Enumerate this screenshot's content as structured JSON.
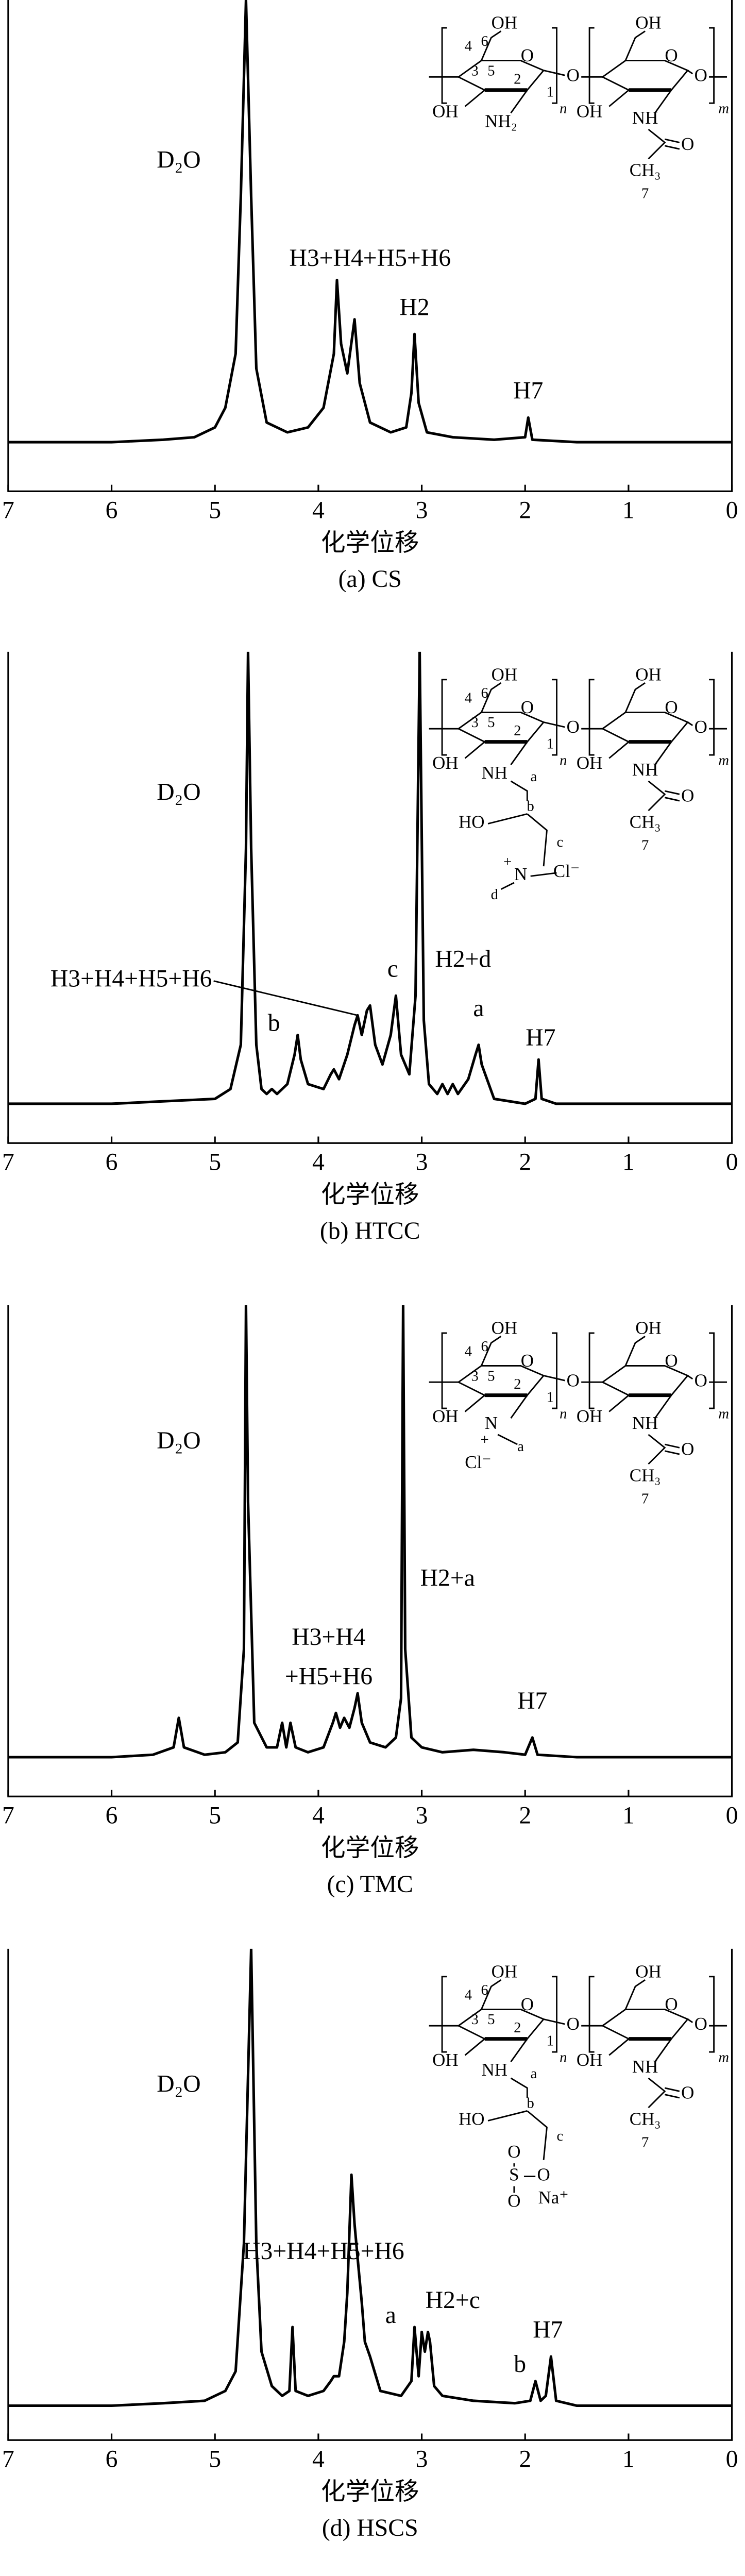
{
  "chart_data": [
    {
      "type": "line",
      "caption": "(a) CS",
      "x_label": "化学位移",
      "color": "#000000",
      "xlim": [
        7,
        0
      ],
      "ylim": [
        0,
        100
      ],
      "xticks": [
        7,
        6,
        5,
        4,
        3,
        2,
        1,
        0
      ],
      "x": [
        7,
        6,
        5.5,
        5.2,
        5.0,
        4.9,
        4.8,
        4.75,
        4.7,
        4.65,
        4.6,
        4.5,
        4.3,
        4.1,
        3.95,
        3.85,
        3.82,
        3.78,
        3.72,
        3.65,
        3.6,
        3.5,
        3.3,
        3.15,
        3.1,
        3.07,
        3.03,
        2.95,
        2.7,
        2.3,
        2.0,
        1.97,
        1.93,
        1.5,
        1.0,
        0.5,
        0
      ],
      "values": [
        10,
        10,
        10.5,
        11,
        13,
        17,
        28,
        60,
        100,
        60,
        25,
        14,
        12,
        13,
        17,
        28,
        43,
        30,
        24,
        35,
        22,
        14,
        12,
        13,
        20,
        32,
        18,
        12,
        11,
        10.5,
        11,
        15,
        10.5,
        10,
        10,
        10,
        10
      ],
      "annotations": [
        {
          "text": "D₂O",
          "x": 5.35,
          "y": 67
        },
        {
          "text": "H3+H4+H5+H6",
          "x": 3.5,
          "y": 47
        },
        {
          "text": "H2",
          "x": 3.07,
          "y": 37
        },
        {
          "text": "H7",
          "x": 1.97,
          "y": 20
        }
      ],
      "structure": [
        "OH",
        "O",
        "4",
        "6",
        "3",
        "5",
        "2",
        "1",
        "OH",
        "NH₂",
        "O",
        "n",
        "OH",
        "O",
        "OH",
        "NH",
        "O",
        "CH₃",
        "7",
        "O",
        "m"
      ]
    },
    {
      "type": "line",
      "caption": "(b) HTCC",
      "x_label": "化学位移",
      "color": "#000000",
      "xlim": [
        7,
        0
      ],
      "ylim": [
        0,
        100
      ],
      "xticks": [
        7,
        6,
        5,
        4,
        3,
        2,
        1,
        0
      ],
      "x": [
        7,
        6,
        5.5,
        5.0,
        4.85,
        4.75,
        4.7,
        4.68,
        4.65,
        4.6,
        4.55,
        4.5,
        4.45,
        4.4,
        4.3,
        4.23,
        4.2,
        4.17,
        4.1,
        3.95,
        3.88,
        3.85,
        3.8,
        3.72,
        3.65,
        3.62,
        3.58,
        3.53,
        3.5,
        3.45,
        3.38,
        3.3,
        3.25,
        3.2,
        3.12,
        3.06,
        3.02,
        2.98,
        2.93,
        2.85,
        2.8,
        2.75,
        2.7,
        2.65,
        2.55,
        2.48,
        2.45,
        2.42,
        2.3,
        2.0,
        1.9,
        1.87,
        1.84,
        1.7,
        1,
        0
      ],
      "values": [
        8,
        8,
        8.5,
        9,
        11,
        20,
        60,
        100,
        60,
        20,
        11,
        10,
        11,
        10,
        12,
        18,
        22,
        17,
        12,
        11,
        14,
        15,
        13,
        18,
        24,
        26,
        22,
        27,
        28,
        20,
        16,
        22,
        30,
        18,
        14,
        30,
        100,
        25,
        12,
        10,
        12,
        10,
        12,
        10,
        13,
        18,
        20,
        16,
        9,
        8,
        9,
        17,
        9,
        8,
        8,
        8
      ],
      "annotations": [
        {
          "text": "D₂O",
          "x": 5.35,
          "y": 71
        },
        {
          "text": "H3+H4+H5+H6",
          "x": 5.81,
          "y": 33,
          "target": [
            3.62,
            26
          ]
        },
        {
          "text": "b",
          "x": 4.43,
          "y": 24
        },
        {
          "text": "c",
          "x": 3.28,
          "y": 35
        },
        {
          "text": "H2+d",
          "x": 2.6,
          "y": 37
        },
        {
          "text": "a",
          "x": 2.45,
          "y": 27
        },
        {
          "text": "H7",
          "x": 1.85,
          "y": 21
        }
      ],
      "structure": [
        "OH",
        "O",
        "4",
        "6",
        "3",
        "5",
        "2",
        "1",
        "OH",
        "NH",
        "a",
        "b",
        "HO",
        "c",
        "+",
        "N",
        "Cl⁻",
        "d",
        "O",
        "n",
        "OH",
        "O",
        "OH",
        "NH",
        "O",
        "CH₃",
        "7",
        "O",
        "m"
      ]
    },
    {
      "type": "line",
      "caption": "(c) TMC",
      "x_label": "化学位移",
      "color": "#000000",
      "xlim": [
        7,
        0
      ],
      "ylim": [
        0,
        100
      ],
      "xticks": [
        7,
        6,
        5,
        4,
        3,
        2,
        1,
        0
      ],
      "x": [
        7,
        6,
        5.6,
        5.4,
        5.35,
        5.3,
        5.1,
        4.9,
        4.78,
        4.72,
        4.7,
        4.68,
        4.62,
        4.5,
        4.4,
        4.35,
        4.31,
        4.27,
        4.22,
        4.1,
        3.95,
        3.86,
        3.83,
        3.79,
        3.75,
        3.7,
        3.65,
        3.62,
        3.58,
        3.5,
        3.35,
        3.25,
        3.2,
        3.18,
        3.16,
        3.1,
        3.0,
        2.8,
        2.5,
        2.2,
        2.0,
        1.93,
        1.88,
        1.5,
        1,
        0
      ],
      "values": [
        8,
        8,
        8.5,
        10,
        16,
        10,
        8.5,
        9,
        11,
        30,
        100,
        60,
        15,
        10,
        10,
        15,
        10,
        15,
        10,
        9,
        10,
        15,
        17,
        14,
        16,
        14,
        18,
        21,
        15,
        11,
        10,
        12,
        20,
        100,
        30,
        12,
        10,
        9,
        9.5,
        9,
        8.5,
        12,
        8.5,
        8,
        8,
        8
      ],
      "annotations": [
        {
          "text": "D₂O",
          "x": 5.35,
          "y": 72
        },
        {
          "text": "H3+H4",
          "x": 3.9,
          "y": 32
        },
        {
          "text": "+H5+H6",
          "x": 3.9,
          "y": 24
        },
        {
          "text": "H2+a",
          "x": 2.75,
          "y": 44
        },
        {
          "text": "H7",
          "x": 1.93,
          "y": 19
        }
      ],
      "structure": [
        "OH",
        "O",
        "4",
        "6",
        "3",
        "5",
        "2",
        "1",
        "OH",
        "N",
        "+",
        "a",
        "Cl⁻",
        "O",
        "n",
        "OH",
        "O",
        "OH",
        "NH",
        "O",
        "CH₃",
        "7",
        "O",
        "m"
      ]
    },
    {
      "type": "line",
      "caption": "(d) HSCS",
      "x_label": "化学位移",
      "color": "#000000",
      "xlim": [
        7,
        0
      ],
      "ylim": [
        0,
        100
      ],
      "xticks": [
        7,
        6,
        5,
        4,
        3,
        2,
        1,
        0
      ],
      "x": [
        7,
        6,
        5.5,
        5.1,
        4.9,
        4.8,
        4.72,
        4.65,
        4.6,
        4.55,
        4.45,
        4.35,
        4.28,
        4.25,
        4.22,
        4.1,
        3.95,
        3.88,
        3.85,
        3.8,
        3.75,
        3.72,
        3.68,
        3.65,
        3.62,
        3.58,
        3.55,
        3.5,
        3.4,
        3.2,
        3.1,
        3.07,
        3.03,
        3.0,
        2.97,
        2.94,
        2.92,
        2.88,
        2.8,
        2.5,
        2.1,
        1.95,
        1.9,
        1.85,
        1.8,
        1.75,
        1.7,
        1.5,
        1,
        0
      ],
      "values": [
        7,
        7,
        7.5,
        8,
        10,
        14,
        40,
        100,
        40,
        18,
        11,
        9,
        10,
        23,
        10,
        9,
        10,
        12,
        13,
        13,
        20,
        30,
        54,
        44,
        37,
        28,
        20,
        17,
        10,
        9,
        12,
        23,
        13,
        22,
        18,
        22,
        20,
        11,
        9,
        8,
        7.5,
        8,
        12,
        8,
        9,
        17,
        8,
        7,
        7,
        7
      ],
      "annotations": [
        {
          "text": "D₂O",
          "x": 5.35,
          "y": 72
        },
        {
          "text": "H3+H4+H5+H6",
          "x": 3.95,
          "y": 38
        },
        {
          "text": "a",
          "x": 3.3,
          "y": 25
        },
        {
          "text": "H2+c",
          "x": 2.7,
          "y": 28
        },
        {
          "text": "b",
          "x": 2.05,
          "y": 15
        },
        {
          "text": "H7",
          "x": 1.78,
          "y": 22
        }
      ],
      "structure": [
        "OH",
        "O",
        "4",
        "6",
        "3",
        "5",
        "2",
        "1",
        "OH",
        "NH",
        "a",
        "b",
        "HO",
        "c",
        "S",
        "O",
        "O",
        "O",
        "Na⁺",
        "O",
        "n",
        "OH",
        "O",
        "OH",
        "NH",
        "O",
        "CH₃",
        "7",
        "O",
        "m"
      ]
    }
  ]
}
